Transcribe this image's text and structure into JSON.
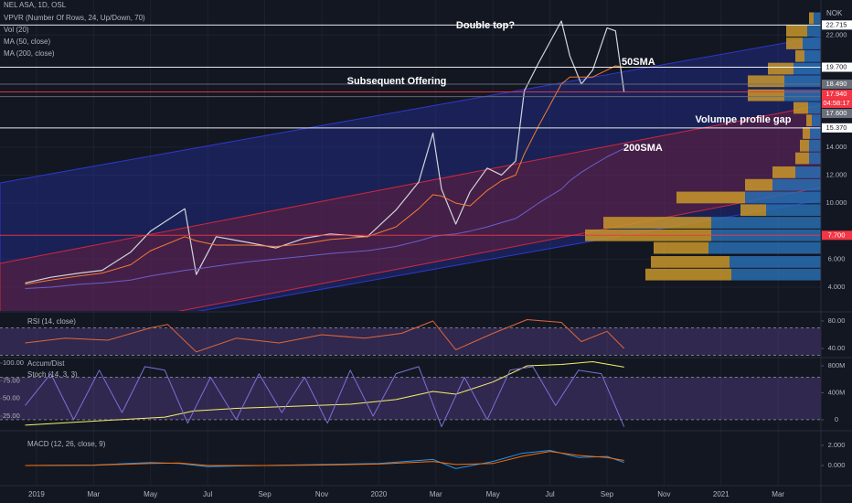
{
  "chart_data": [
    {
      "type": "line",
      "title": "NEL ASA, 1D, OSL",
      "indicators": [
        "VPVR (Number Of Rows, 24, Up/Down, 70)",
        "Vol (20)"
      ],
      "unit": "NOK",
      "x": [
        -0.4,
        0.5,
        1.5,
        2.3,
        3.3,
        4.0,
        5.2,
        5.6,
        6.3,
        7.4,
        8.4,
        9.4,
        10.3,
        11.6,
        12.6,
        13.4,
        13.9,
        14.2,
        14.7,
        15.2,
        15.8,
        16.3,
        16.8,
        17.1,
        17.6,
        18.4,
        18.7,
        19.1,
        19.5,
        20.0,
        20.3,
        20.6
      ],
      "series": [
        {
          "color": "#d1d4dc",
          "values": [
            4.3,
            4.7,
            5.0,
            5.2,
            6.5,
            8.0,
            9.6,
            4.9,
            7.6,
            7.2,
            6.8,
            7.5,
            7.8,
            7.6,
            9.5,
            11.5,
            15.0,
            11.0,
            8.5,
            10.8,
            12.5,
            12.0,
            13.0,
            18.0,
            20.0,
            23.0,
            20.5,
            18.5,
            19.5,
            22.5,
            22.3,
            17.9
          ]
        },
        {
          "name": "MA (50, close)",
          "color": "#f57c32",
          "values": [
            4.2,
            4.5,
            4.8,
            5.0,
            5.6,
            6.6,
            7.6,
            7.3,
            7.0,
            7.0,
            6.9,
            7.1,
            7.4,
            7.6,
            8.3,
            9.6,
            10.6,
            10.5,
            10.0,
            9.8,
            10.9,
            11.6,
            12.0,
            13.5,
            15.5,
            18.5,
            19.0,
            19.0,
            19.0,
            19.5,
            19.8,
            19.7
          ]
        },
        {
          "name": "MA (200, close)",
          "color": "#6a5fc9",
          "values": [
            3.9,
            4.0,
            4.2,
            4.3,
            4.5,
            4.8,
            5.2,
            5.3,
            5.5,
            5.8,
            6.0,
            6.2,
            6.4,
            6.6,
            6.9,
            7.3,
            7.6,
            7.7,
            7.8,
            8.0,
            8.3,
            8.6,
            8.9,
            9.3,
            10.0,
            11.0,
            11.6,
            12.2,
            12.7,
            13.3,
            13.6,
            13.9
          ]
        }
      ],
      "xlim": [
        -1.28,
        27.5
      ],
      "xticks": [
        {
          "value": 0,
          "label": "2019"
        },
        {
          "value": 2,
          "label": "Mar"
        },
        {
          "value": 4,
          "label": "May"
        },
        {
          "value": 6,
          "label": "Jul"
        },
        {
          "value": 8,
          "label": "Sep"
        },
        {
          "value": 10,
          "label": "Nov"
        },
        {
          "value": 12,
          "label": "2020"
        },
        {
          "value": 14,
          "label": "Mar"
        },
        {
          "value": 16,
          "label": "May"
        },
        {
          "value": 18,
          "label": "Jul"
        },
        {
          "value": 20,
          "label": "Sep"
        },
        {
          "value": 22,
          "label": "Nov"
        },
        {
          "value": 24,
          "label": "2021"
        },
        {
          "value": 26,
          "label": "Mar"
        }
      ],
      "ylim": [
        2.3,
        24.5
      ],
      "yticks": [
        {
          "value": 22,
          "label": "22.000"
        },
        {
          "value": 14,
          "label": "14.000"
        },
        {
          "value": 12,
          "label": "12.000"
        },
        {
          "value": 10,
          "label": "10.000"
        },
        {
          "value": 6,
          "label": "6.000"
        },
        {
          "value": 4,
          "label": "4.000"
        }
      ],
      "grid": true,
      "price_levels": [
        {
          "value": 22.715,
          "label": "22.715",
          "color": "#ffffff"
        },
        {
          "value": 19.7,
          "label": "19.700",
          "color": "#ffffff"
        },
        {
          "value": 18.49,
          "label": "18.490",
          "color": "#6b6f7a"
        },
        {
          "value": 17.94,
          "label": "17.940",
          "color": "#f23645"
        },
        {
          "value": 17.6,
          "label": "17.600",
          "color": "#6b6f7a"
        },
        {
          "value": 15.37,
          "label": "15.370",
          "color": "#ffffff"
        },
        {
          "value": 7.7,
          "label": "7.700",
          "color": "#f23645"
        }
      ],
      "countdown": "04:58:17",
      "annotations": [
        "Double top?",
        "50SMA",
        "Subsequent Offering",
        "Volumpe profile gap",
        "200SMA"
      ],
      "volume_profile": {
        "prices": [
          4.9,
          5.8,
          6.8,
          7.7,
          8.6,
          9.5,
          10.4,
          11.3,
          12.2,
          13.2,
          14.1,
          15.0,
          15.9,
          16.8,
          17.7,
          18.7,
          19.6,
          20.5,
          21.4,
          22.3,
          23.2
        ],
        "up": [
          98,
          100,
          123,
          120,
          120,
          60,
          83,
          53,
          28,
          13,
          13,
          12,
          10,
          14,
          40,
          40,
          30,
          18,
          20,
          15,
          8
        ],
        "down": [
          94,
          86,
          60,
          138,
          118,
          28,
          75,
          30,
          25,
          15,
          10,
          8,
          6,
          16,
          40,
          40,
          28,
          10,
          18,
          23,
          5
        ],
        "up_color": "#2a6db0",
        "down_color": "#c9972b"
      }
    },
    {
      "type": "line",
      "x": [
        -0.4,
        1,
        2.5,
        4,
        4.6,
        5.6,
        7,
        8.5,
        10,
        11.5,
        12.8,
        13.9,
        14.7,
        16,
        17.2,
        18.4,
        19.1,
        20,
        20.6
      ],
      "series": [
        {
          "name": "RSI (14, close)",
          "color": "#e0663a",
          "values": [
            48,
            55,
            52,
            70,
            75,
            35,
            55,
            48,
            60,
            55,
            62,
            80,
            38,
            62,
            82,
            78,
            50,
            65,
            40
          ]
        }
      ],
      "ylim": [
        28,
        92
      ],
      "yticks": [
        {
          "value": 80,
          "label": "80.00"
        },
        {
          "value": 40,
          "label": "40.00"
        }
      ],
      "band": [
        30,
        70
      ]
    },
    {
      "type": "line",
      "series": [
        {
          "name": "Accum/Dist",
          "color": "#f5f06a",
          "axis": "y2",
          "x": [
            -0.4,
            2,
            4.5,
            5.5,
            7,
            9,
            11,
            12.6,
            13.9,
            14.7,
            16,
            17.2,
            18.4,
            19.5,
            20.6
          ],
          "values": [
            -80000000,
            -20000000,
            40000000,
            130000000,
            170000000,
            200000000,
            230000000,
            300000000,
            420000000,
            380000000,
            560000000,
            800000000,
            820000000,
            860000000,
            780000000
          ]
        },
        {
          "name": "Stoch (14, 3, 3)",
          "color": "#7e6fd8",
          "x": [
            -0.4,
            0.5,
            1.3,
            2.2,
            3,
            3.8,
            4.5,
            5.3,
            6.1,
            7,
            7.8,
            8.6,
            9.4,
            10.2,
            11,
            11.8,
            12.6,
            13.4,
            14.2,
            15,
            15.8,
            16.6,
            17.4,
            18.2,
            19,
            19.8,
            20.6
          ],
          "values": [
            40,
            85,
            20,
            90,
            30,
            95,
            90,
            15,
            80,
            20,
            85,
            30,
            80,
            15,
            90,
            25,
            85,
            95,
            10,
            80,
            20,
            90,
            95,
            40,
            90,
            85,
            10
          ]
        }
      ],
      "ylim": [
        5.6,
        106.5
      ],
      "yticks": [
        {
          "value": 100,
          "label": "100.00"
        },
        {
          "value": 75,
          "label": "75.00"
        },
        {
          "value": 50,
          "label": "50.00"
        },
        {
          "value": 25,
          "label": "25.00"
        }
      ],
      "y2lim": [
        -149000000,
        908000000
      ],
      "y2ticks": [
        {
          "value": 800000000,
          "label": "800M"
        },
        {
          "value": 400000000,
          "label": "400M"
        },
        0
      ],
      "band": [
        20,
        80
      ]
    },
    {
      "type": "line",
      "title": "MACD (12, 26, close, 9)",
      "x": [
        -0.4,
        2,
        4,
        5,
        6,
        8,
        10,
        12,
        13.9,
        14.7,
        16,
        17,
        18,
        19,
        20,
        20.6
      ],
      "series": [
        {
          "color": "#2196f3",
          "values": [
            0,
            0.05,
            0.3,
            0.2,
            -0.1,
            0,
            0.1,
            0.2,
            0.6,
            -0.3,
            0.4,
            1.2,
            1.5,
            0.8,
            0.9,
            0.3
          ]
        },
        {
          "color": "#ff6d00",
          "values": [
            0,
            0.03,
            0.2,
            0.25,
            0,
            0,
            0.05,
            0.15,
            0.4,
            0.1,
            0.2,
            0.9,
            1.4,
            1.0,
            0.8,
            0.5
          ]
        }
      ],
      "ylim": [
        -1.9,
        3.36
      ],
      "yticks": [
        {
          "value": 2,
          "label": "2.000"
        },
        {
          "value": 0,
          "label": "0.000"
        }
      ]
    }
  ]
}
